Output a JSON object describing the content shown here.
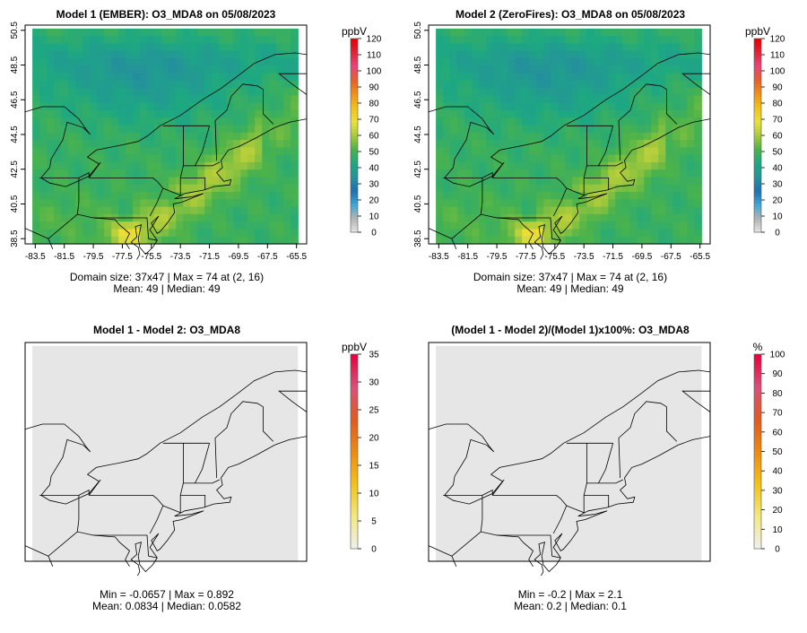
{
  "panels": [
    {
      "title": "Model 1 (EMBER): O3_MDA8 on 05/08/2023",
      "stats": [
        "Domain size: 37x47 | Max = 74 at (2, 16)",
        "Mean: 49 |  Median: 49"
      ],
      "map_kind": "ozone"
    },
    {
      "title": "Model 2 (ZeroFires): O3_MDA8 on 05/08/2023",
      "stats": [
        "Domain size: 37x47 | Max = 74 at (2, 16)",
        "Mean: 49 |  Median: 49"
      ],
      "map_kind": "ozone"
    },
    {
      "title": "Model 1 - Model 2: O3_MDA8",
      "stats": [
        "Min = -0.0657 | Max = 0.892",
        "Mean: 0.0834 |  Median: 0.0582"
      ],
      "map_kind": "diff"
    },
    {
      "title": "(Model 1 - Model 2)/(Model 1)x100%: O3_MDA8",
      "stats": [
        "Min = -0.2 | Max = 2.1",
        "Mean: 0.2 |  Median: 0.1"
      ],
      "map_kind": "diff"
    }
  ],
  "chart_data": [
    {
      "type": "heatmap",
      "title": "Model 1 (EMBER): O3_MDA8 on 05/08/2023",
      "x_ticks": [
        "-83.5",
        "-81.5",
        "-79.5",
        "-77.5",
        "-75.5",
        "-73.5",
        "-71.5",
        "-69.5",
        "-67.5",
        "-65.5"
      ],
      "y_ticks": [
        "38.5",
        "40.5",
        "42.5",
        "44.5",
        "46.5",
        "48.5",
        "50.5"
      ],
      "xlim": [
        -84.2,
        -64.8
      ],
      "ylim": [
        38.2,
        50.8
      ],
      "colorbar": {
        "unit": "ppbV",
        "ticks": [
          "0",
          "10",
          "20",
          "30",
          "40",
          "50",
          "60",
          "70",
          "80",
          "90",
          "100",
          "110",
          "120"
        ],
        "range": [
          0,
          120
        ]
      },
      "domain_size": "37x47",
      "max": 74,
      "max_location": [
        2,
        16
      ],
      "mean": 49,
      "median": 49
    },
    {
      "type": "heatmap",
      "title": "Model 2 (ZeroFires): O3_MDA8 on 05/08/2023",
      "x_ticks": [
        "-83.5",
        "-81.5",
        "-79.5",
        "-77.5",
        "-75.5",
        "-73.5",
        "-71.5",
        "-69.5",
        "-67.5",
        "-65.5"
      ],
      "y_ticks": [
        "38.5",
        "40.5",
        "42.5",
        "44.5",
        "46.5",
        "48.5",
        "50.5"
      ],
      "xlim": [
        -84.2,
        -64.8
      ],
      "ylim": [
        38.2,
        50.8
      ],
      "colorbar": {
        "unit": "ppbV",
        "ticks": [
          "0",
          "10",
          "20",
          "30",
          "40",
          "50",
          "60",
          "70",
          "80",
          "90",
          "100",
          "110",
          "120"
        ],
        "range": [
          0,
          120
        ]
      },
      "domain_size": "37x47",
      "max": 74,
      "max_location": [
        2,
        16
      ],
      "mean": 49,
      "median": 49
    },
    {
      "type": "heatmap",
      "title": "Model 1 - Model 2: O3_MDA8",
      "colorbar": {
        "unit": "ppbV",
        "ticks": [
          "0",
          "5",
          "10",
          "15",
          "20",
          "25",
          "30",
          "35"
        ],
        "range": [
          0,
          35
        ]
      },
      "min": -0.0657,
      "max": 0.892,
      "mean": 0.0834,
      "median": 0.0582
    },
    {
      "type": "heatmap",
      "title": "(Model 1 - Model 2)/(Model 1)x100%: O3_MDA8",
      "colorbar": {
        "unit": "%",
        "ticks": [
          "0",
          "10",
          "20",
          "30",
          "40",
          "50",
          "60",
          "70",
          "80",
          "90",
          "100"
        ],
        "range": [
          0,
          100
        ]
      },
      "min": -0.2,
      "max": 2.1,
      "mean": 0.2,
      "median": 0.1
    }
  ],
  "colors": {
    "ozone_scale": [
      "#e6e6e6",
      "#b3b3b3",
      "#3fa7d6",
      "#1f6fb0",
      "#24939a",
      "#1ea882",
      "#4cb34a",
      "#a7c93b",
      "#e8e23a",
      "#f2c21a",
      "#f0921a",
      "#e6602a",
      "#e8457a",
      "#e0233a",
      "#e60000"
    ],
    "diff_scale": [
      "#f0f0f0",
      "#f3e880",
      "#f2c21a",
      "#ee8a12",
      "#e05a20",
      "#d9507a",
      "#e6003a"
    ],
    "map_grey": "#e6e6e6"
  }
}
